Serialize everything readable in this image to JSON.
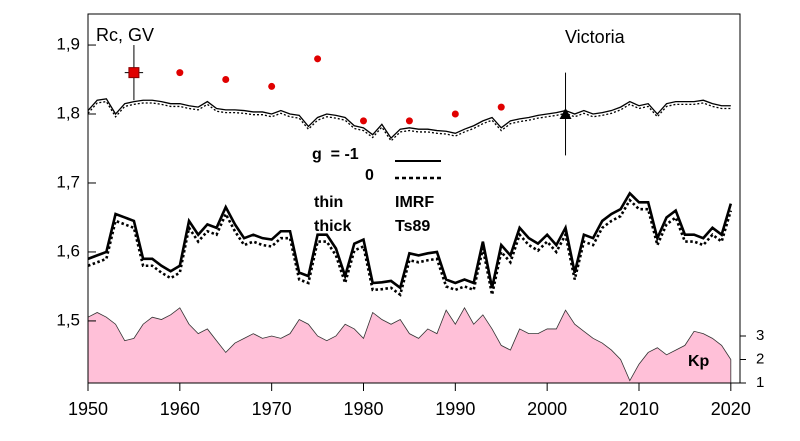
{
  "chart_data": {
    "type": "line",
    "annotations": [
      "Rc, GV",
      "Victoria",
      "g  = -1",
      "0",
      "thin",
      "thick",
      "IMRF",
      "Ts89",
      "Kp"
    ],
    "x": [
      1950,
      1951,
      1952,
      1953,
      1954,
      1955,
      1956,
      1957,
      1958,
      1959,
      1960,
      1961,
      1962,
      1963,
      1964,
      1965,
      1966,
      1967,
      1968,
      1969,
      1970,
      1971,
      1972,
      1973,
      1974,
      1975,
      1976,
      1977,
      1978,
      1979,
      1980,
      1981,
      1982,
      1983,
      1984,
      1985,
      1986,
      1987,
      1988,
      1989,
      1990,
      1991,
      1992,
      1993,
      1994,
      1995,
      1996,
      1997,
      1998,
      1999,
      2000,
      2001,
      2002,
      2003,
      2004,
      2005,
      2006,
      2007,
      2008,
      2009,
      2010,
      2011,
      2012,
      2013,
      2014,
      2015,
      2016,
      2017,
      2018,
      2019,
      2020
    ],
    "series": [
      {
        "color": "#000000",
        "width": 1.3,
        "dash": "none",
        "values": [
          1.805,
          1.82,
          1.822,
          1.8,
          1.815,
          1.818,
          1.82,
          1.82,
          1.818,
          1.815,
          1.815,
          1.812,
          1.81,
          1.818,
          1.808,
          1.806,
          1.806,
          1.805,
          1.803,
          1.803,
          1.8,
          1.805,
          1.8,
          1.798,
          1.782,
          1.795,
          1.8,
          1.798,
          1.795,
          1.783,
          1.78,
          1.77,
          1.785,
          1.765,
          1.778,
          1.78,
          1.778,
          1.778,
          1.776,
          1.775,
          1.772,
          1.778,
          1.783,
          1.79,
          1.795,
          1.78,
          1.79,
          1.793,
          1.795,
          1.798,
          1.8,
          1.802,
          1.805,
          1.8,
          1.805,
          1.8,
          1.802,
          1.805,
          1.81,
          1.818,
          1.812,
          1.815,
          1.8,
          1.815,
          1.818,
          1.818,
          1.818,
          1.82,
          1.815,
          1.812,
          1.812
        ]
      },
      {
        "color": "#000000",
        "width": 1.3,
        "dash": "2 2",
        "values": [
          1.801,
          1.816,
          1.818,
          1.796,
          1.811,
          1.814,
          1.816,
          1.816,
          1.814,
          1.811,
          1.811,
          1.808,
          1.806,
          1.814,
          1.804,
          1.802,
          1.802,
          1.801,
          1.799,
          1.799,
          1.796,
          1.801,
          1.796,
          1.794,
          1.778,
          1.791,
          1.796,
          1.794,
          1.791,
          1.779,
          1.776,
          1.766,
          1.781,
          1.761,
          1.774,
          1.776,
          1.774,
          1.774,
          1.772,
          1.771,
          1.768,
          1.774,
          1.779,
          1.786,
          1.791,
          1.776,
          1.786,
          1.789,
          1.791,
          1.794,
          1.796,
          1.798,
          1.801,
          1.796,
          1.801,
          1.796,
          1.798,
          1.801,
          1.806,
          1.814,
          1.808,
          1.811,
          1.796,
          1.811,
          1.814,
          1.814,
          1.814,
          1.816,
          1.811,
          1.808,
          1.808
        ]
      },
      {
        "color": "#000000",
        "width": 2.6,
        "dash": "none",
        "values": [
          1.59,
          1.595,
          1.6,
          1.655,
          1.65,
          1.645,
          1.59,
          1.59,
          1.58,
          1.572,
          1.58,
          1.645,
          1.625,
          1.64,
          1.635,
          1.665,
          1.64,
          1.62,
          1.625,
          1.62,
          1.618,
          1.63,
          1.63,
          1.57,
          1.565,
          1.625,
          1.625,
          1.605,
          1.565,
          1.612,
          1.618,
          1.555,
          1.556,
          1.558,
          1.548,
          1.598,
          1.595,
          1.598,
          1.6,
          1.56,
          1.555,
          1.56,
          1.555,
          1.615,
          1.548,
          1.61,
          1.595,
          1.635,
          1.62,
          1.612,
          1.625,
          1.61,
          1.635,
          1.57,
          1.625,
          1.62,
          1.645,
          1.655,
          1.662,
          1.685,
          1.672,
          1.672,
          1.62,
          1.65,
          1.66,
          1.625,
          1.625,
          1.62,
          1.635,
          1.625,
          1.67
        ]
      },
      {
        "color": "#000000",
        "width": 2.6,
        "dash": "2.5 2.5",
        "values": [
          1.58,
          1.585,
          1.59,
          1.645,
          1.64,
          1.635,
          1.58,
          1.58,
          1.57,
          1.562,
          1.57,
          1.635,
          1.615,
          1.63,
          1.625,
          1.655,
          1.63,
          1.61,
          1.615,
          1.61,
          1.608,
          1.62,
          1.62,
          1.56,
          1.555,
          1.615,
          1.615,
          1.595,
          1.555,
          1.602,
          1.608,
          1.545,
          1.546,
          1.548,
          1.538,
          1.588,
          1.585,
          1.588,
          1.59,
          1.55,
          1.545,
          1.55,
          1.545,
          1.605,
          1.538,
          1.6,
          1.585,
          1.625,
          1.61,
          1.602,
          1.615,
          1.6,
          1.625,
          1.56,
          1.615,
          1.61,
          1.635,
          1.645,
          1.652,
          1.675,
          1.662,
          1.662,
          1.61,
          1.64,
          1.65,
          1.615,
          1.615,
          1.61,
          1.625,
          1.615,
          1.66
        ]
      },
      {
        "color": "#ffc0d8",
        "axis": "y2",
        "area": true,
        "values": [
          3.8,
          4.0,
          3.8,
          3.5,
          2.8,
          2.9,
          3.5,
          3.8,
          3.7,
          3.9,
          4.2,
          3.5,
          3.1,
          3.3,
          2.8,
          2.3,
          2.7,
          2.9,
          3.1,
          2.9,
          3.0,
          2.9,
          3.1,
          3.7,
          3.5,
          3.0,
          2.8,
          3.0,
          3.5,
          3.3,
          2.9,
          4.0,
          3.7,
          3.5,
          3.7,
          3.1,
          2.9,
          3.3,
          3.1,
          4.1,
          3.5,
          4.2,
          3.5,
          3.9,
          3.3,
          2.6,
          2.4,
          3.3,
          3.1,
          3.1,
          3.3,
          3.3,
          4.1,
          3.5,
          3.2,
          2.9,
          2.7,
          2.4,
          2.0,
          1.1,
          1.8,
          2.3,
          2.5,
          2.2,
          2.4,
          2.6,
          3.2,
          3.1,
          2.9,
          2.6,
          2.0
        ]
      }
    ],
    "measurements": {
      "color": "#e00000",
      "x": [
        1960,
        1965,
        1970,
        1975,
        1980,
        1985,
        1990,
        1995
      ],
      "values": [
        1.86,
        1.85,
        1.84,
        1.88,
        1.79,
        1.79,
        1.8,
        1.81
      ]
    },
    "square": {
      "color": "#e00000",
      "x": 1955,
      "value": 1.86,
      "yerr": 0.04,
      "xerr": 1
    },
    "triangle": {
      "color": "#000000",
      "x": 2002,
      "value": 1.8,
      "yerr": 0.06
    },
    "xlim": [
      1950,
      2021
    ],
    "xticks": [
      1950,
      1960,
      1970,
      1980,
      1990,
      2000,
      2010,
      2020
    ],
    "ylim": [
      1.41,
      1.945
    ],
    "yticks": [
      {
        "value": 1.5,
        "label": "1,5"
      },
      {
        "value": 1.6,
        "label": "1,6"
      },
      {
        "value": 1.7,
        "label": "1,7"
      },
      {
        "value": 1.8,
        "label": "1,8"
      },
      {
        "value": 1.9,
        "label": "1,9"
      }
    ],
    "y2lim": [
      1,
      16.7
    ],
    "y2ticks": [
      1,
      2,
      3
    ]
  }
}
